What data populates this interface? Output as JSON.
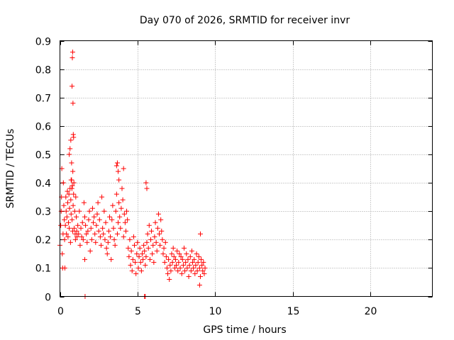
{
  "chart_data": {
    "type": "scatter",
    "title": "Day 070 of 2026, SRMTID for receiver invr",
    "xlabel": "GPS time / hours",
    "ylabel": "SRMTID / TECUs",
    "xlim": [
      0,
      24
    ],
    "ylim": [
      0,
      0.9
    ],
    "xticks": [
      0,
      5,
      10,
      15,
      20
    ],
    "yticks": [
      0,
      0.1,
      0.2,
      0.3,
      0.4,
      0.5,
      0.6,
      0.7,
      0.8,
      0.9
    ],
    "xtick_labels": [
      "0",
      "5",
      "10",
      "15",
      "20"
    ],
    "ytick_labels": [
      "0",
      "0.1",
      "0.2",
      "0.3",
      "0.4",
      "0.5",
      "0.6",
      "0.7",
      "0.8",
      "0.9"
    ],
    "grid": true,
    "marker": "+",
    "series": [
      {
        "name": "SRMTID",
        "color": "#ff0000",
        "x": [
          0.0,
          0.05,
          0.08,
          0.1,
          0.12,
          0.15,
          0.18,
          0.2,
          0.22,
          0.25,
          0.28,
          0.3,
          0.32,
          0.35,
          0.38,
          0.4,
          0.42,
          0.45,
          0.48,
          0.5,
          0.52,
          0.55,
          0.58,
          0.6,
          0.62,
          0.65,
          0.68,
          0.7,
          0.72,
          0.75,
          0.78,
          0.8,
          0.82,
          0.85,
          0.88,
          0.9,
          0.92,
          0.95,
          0.98,
          1.0,
          1.02,
          1.05,
          1.08,
          1.1,
          1.15,
          1.2,
          1.25,
          1.3,
          1.35,
          1.4,
          1.45,
          1.5,
          1.55,
          1.6,
          1.65,
          1.7,
          1.75,
          1.8,
          1.85,
          1.9,
          1.95,
          2.0,
          2.05,
          2.1,
          2.15,
          2.2,
          2.25,
          2.3,
          2.35,
          2.4,
          2.45,
          2.5,
          2.55,
          2.6,
          2.65,
          2.7,
          2.75,
          2.8,
          2.85,
          2.9,
          2.95,
          3.0,
          3.05,
          3.1,
          3.15,
          3.2,
          3.25,
          3.3,
          3.35,
          3.4,
          3.45,
          3.5,
          3.55,
          3.6,
          3.65,
          3.7,
          3.75,
          3.8,
          3.85,
          3.9,
          3.95,
          4.0,
          4.05,
          4.1,
          4.15,
          4.2,
          4.25,
          4.3,
          4.35,
          4.4,
          4.45,
          4.5,
          4.55,
          4.6,
          4.65,
          4.7,
          4.75,
          4.8,
          4.85,
          4.9,
          4.95,
          5.0,
          5.05,
          5.1,
          5.15,
          5.2,
          5.25,
          5.3,
          5.35,
          5.4,
          5.45,
          5.5,
          5.55,
          5.6,
          5.65,
          5.7,
          5.75,
          5.8,
          5.85,
          5.9,
          5.95,
          6.0,
          6.05,
          6.1,
          6.15,
          6.2,
          6.25,
          6.3,
          6.35,
          6.4,
          6.45,
          6.5,
          6.55,
          6.6,
          6.65,
          6.7,
          6.75,
          6.8,
          6.85,
          6.9,
          6.95,
          7.0,
          7.05,
          7.1,
          7.15,
          7.2,
          7.25,
          7.3,
          7.35,
          7.4,
          7.45,
          7.5,
          7.55,
          7.6,
          7.65,
          7.7,
          7.75,
          7.8,
          7.85,
          7.9,
          7.95,
          8.0,
          8.05,
          8.1,
          8.15,
          8.2,
          8.25,
          8.3,
          8.35,
          8.4,
          8.45,
          8.5,
          8.55,
          8.6,
          8.65,
          8.7,
          8.75,
          8.8,
          8.85,
          8.9,
          8.95,
          9.0,
          9.05,
          9.1,
          9.15,
          9.2,
          9.25,
          9.3,
          9.35,
          0.78,
          0.8,
          0.82,
          0.84,
          0.86,
          0.88,
          0.75,
          0.6,
          0.65,
          0.7,
          0.72,
          0.77,
          0.83,
          1.6,
          1.62,
          5.45,
          5.5,
          3.65,
          3.7,
          3.75,
          3.8,
          4.1,
          5.55,
          5.6,
          9.0,
          9.05
        ],
        "y": [
          0.18,
          0.25,
          0.3,
          0.35,
          0.45,
          0.15,
          0.1,
          0.22,
          0.4,
          0.32,
          0.27,
          0.2,
          0.1,
          0.25,
          0.35,
          0.3,
          0.22,
          0.28,
          0.37,
          0.33,
          0.21,
          0.26,
          0.36,
          0.24,
          0.31,
          0.38,
          0.19,
          0.34,
          0.29,
          0.41,
          0.27,
          0.39,
          0.23,
          0.32,
          0.36,
          0.4,
          0.24,
          0.3,
          0.22,
          0.2,
          0.35,
          0.28,
          0.23,
          0.21,
          0.25,
          0.22,
          0.3,
          0.18,
          0.24,
          0.21,
          0.26,
          0.2,
          0.33,
          0.28,
          0.25,
          0.22,
          0.19,
          0.23,
          0.27,
          0.3,
          0.16,
          0.24,
          0.2,
          0.31,
          0.26,
          0.28,
          0.22,
          0.19,
          0.25,
          0.29,
          0.33,
          0.23,
          0.27,
          0.21,
          0.18,
          0.35,
          0.24,
          0.22,
          0.3,
          0.2,
          0.26,
          0.17,
          0.15,
          0.19,
          0.23,
          0.28,
          0.21,
          0.13,
          0.27,
          0.32,
          0.24,
          0.2,
          0.18,
          0.3,
          0.36,
          0.22,
          0.26,
          0.33,
          0.28,
          0.24,
          0.31,
          0.38,
          0.34,
          0.21,
          0.29,
          0.26,
          0.23,
          0.3,
          0.27,
          0.17,
          0.14,
          0.2,
          0.11,
          0.16,
          0.09,
          0.13,
          0.21,
          0.18,
          0.12,
          0.08,
          0.15,
          0.19,
          0.1,
          0.14,
          0.17,
          0.12,
          0.09,
          0.15,
          0.13,
          0.18,
          0.16,
          0.11,
          0.14,
          0.19,
          0.22,
          0.17,
          0.25,
          0.13,
          0.2,
          0.23,
          0.15,
          0.18,
          0.12,
          0.21,
          0.26,
          0.19,
          0.16,
          0.24,
          0.29,
          0.22,
          0.18,
          0.27,
          0.23,
          0.2,
          0.15,
          0.17,
          0.12,
          0.19,
          0.14,
          0.1,
          0.08,
          0.13,
          0.06,
          0.11,
          0.09,
          0.15,
          0.12,
          0.17,
          0.14,
          0.1,
          0.13,
          0.11,
          0.16,
          0.09,
          0.12,
          0.15,
          0.1,
          0.14,
          0.08,
          0.13,
          0.11,
          0.17,
          0.09,
          0.12,
          0.15,
          0.1,
          0.13,
          0.07,
          0.11,
          0.14,
          0.09,
          0.16,
          0.12,
          0.1,
          0.13,
          0.08,
          0.11,
          0.15,
          0.09,
          0.12,
          0.14,
          0.1,
          0.07,
          0.13,
          0.11,
          0.09,
          0.12,
          0.08,
          0.1,
          0.74,
          0.84,
          0.86,
          0.68,
          0.57,
          0.56,
          0.47,
          0.5,
          0.52,
          0.55,
          0.41,
          0.38,
          0.44,
          0.13,
          0.0,
          0.0,
          0.0,
          0.46,
          0.47,
          0.44,
          0.41,
          0.45,
          0.4,
          0.38,
          0.04,
          0.22
        ]
      }
    ]
  }
}
